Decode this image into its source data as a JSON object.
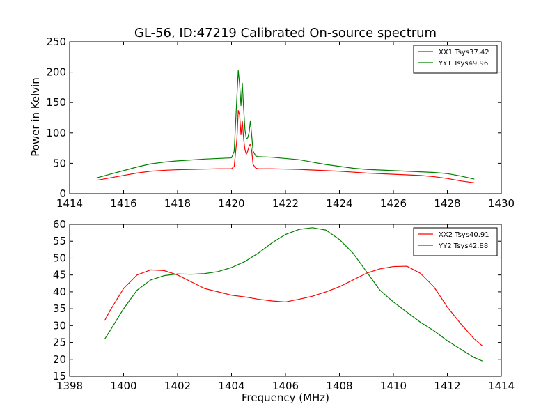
{
  "chart_data": [
    {
      "type": "line",
      "title": "GL-56, ID:47219 Calibrated On-source spectrum",
      "xlabel": "",
      "ylabel": "Power in Kelvin",
      "xlim": [
        1414,
        1430
      ],
      "ylim": [
        0,
        250
      ],
      "xticks": [
        "1414",
        "1416",
        "1418",
        "1420",
        "1422",
        "1424",
        "1426",
        "1428",
        "1430"
      ],
      "yticks": [
        "0",
        "50",
        "100",
        "150",
        "200",
        "250"
      ],
      "legend_position": "top-right",
      "grid": false,
      "series": [
        {
          "name": "XX1 Tsys37.42",
          "color": "#ff0000",
          "x": [
            1415.0,
            1415.5,
            1416.0,
            1416.5,
            1417.0,
            1417.5,
            1418.0,
            1418.5,
            1419.0,
            1419.5,
            1420.0,
            1420.1,
            1420.2,
            1420.25,
            1420.3,
            1420.35,
            1420.4,
            1420.45,
            1420.5,
            1420.55,
            1420.6,
            1420.65,
            1420.7,
            1420.75,
            1420.8,
            1420.9,
            1421.0,
            1421.5,
            1422.0,
            1422.5,
            1423.0,
            1423.5,
            1424.0,
            1424.5,
            1425.0,
            1425.5,
            1426.0,
            1426.5,
            1427.0,
            1427.5,
            1428.0,
            1428.5,
            1429.0
          ],
          "y": [
            22,
            26,
            30,
            34,
            37,
            38.5,
            39.5,
            40,
            40.5,
            41,
            41,
            45,
            90,
            137,
            130,
            97,
            120,
            90,
            72,
            65,
            70,
            78,
            82,
            70,
            48,
            42,
            41,
            41,
            40.5,
            40,
            39,
            38,
            37,
            35.5,
            34,
            33,
            32,
            31,
            30,
            28,
            25,
            21,
            18
          ]
        },
        {
          "name": "YY1 Tsys49.96",
          "color": "#008000",
          "x": [
            1415.0,
            1415.5,
            1416.0,
            1416.5,
            1417.0,
            1417.5,
            1418.0,
            1418.5,
            1419.0,
            1419.5,
            1420.0,
            1420.1,
            1420.2,
            1420.25,
            1420.3,
            1420.35,
            1420.4,
            1420.45,
            1420.5,
            1420.55,
            1420.6,
            1420.65,
            1420.7,
            1420.75,
            1420.8,
            1420.9,
            1421.0,
            1421.5,
            1422.0,
            1422.5,
            1423.0,
            1423.5,
            1424.0,
            1424.5,
            1425.0,
            1425.5,
            1426.0,
            1426.5,
            1427.0,
            1427.5,
            1428.0,
            1428.5,
            1429.0
          ],
          "y": [
            26,
            32,
            38,
            44,
            49,
            52,
            54,
            55.5,
            57,
            58,
            59,
            70,
            160,
            203,
            180,
            145,
            182,
            140,
            105,
            90,
            92,
            100,
            120,
            95,
            70,
            62,
            61,
            60,
            58,
            56,
            52,
            48,
            45,
            42,
            40,
            39,
            38,
            37,
            36,
            35,
            33,
            29,
            24
          ]
        }
      ]
    },
    {
      "type": "line",
      "title": "",
      "xlabel": "Frequency (MHz)",
      "ylabel": "",
      "xlim": [
        1398,
        1414
      ],
      "ylim": [
        15,
        60
      ],
      "xticks": [
        "1398",
        "1400",
        "1402",
        "1404",
        "1406",
        "1408",
        "1410",
        "1412",
        "1414"
      ],
      "yticks": [
        "15",
        "20",
        "25",
        "30",
        "35",
        "40",
        "45",
        "50",
        "55",
        "60"
      ],
      "legend_position": "top-right",
      "grid": false,
      "series": [
        {
          "name": "XX2 Tsys40.91",
          "color": "#ff0000",
          "x": [
            1399.3,
            1399.5,
            1400.0,
            1400.5,
            1401.0,
            1401.5,
            1402.0,
            1402.5,
            1403.0,
            1403.5,
            1404.0,
            1404.5,
            1405.0,
            1405.5,
            1406.0,
            1406.5,
            1407.0,
            1407.5,
            1408.0,
            1408.5,
            1409.0,
            1409.5,
            1410.0,
            1410.5,
            1411.0,
            1411.5,
            1412.0,
            1412.5,
            1413.0,
            1413.3
          ],
          "y": [
            31.5,
            34.5,
            41,
            45,
            46.5,
            46.3,
            45,
            43,
            41,
            40,
            39,
            38.5,
            37.8,
            37.3,
            37,
            37.8,
            38.7,
            40,
            41.5,
            43.5,
            45.5,
            46.8,
            47.5,
            47.6,
            45.5,
            41.5,
            35.5,
            30.5,
            26,
            24
          ]
        },
        {
          "name": "YY2 Tsys42.88",
          "color": "#008000",
          "x": [
            1399.3,
            1399.5,
            1400.0,
            1400.5,
            1401.0,
            1401.5,
            1402.0,
            1402.5,
            1403.0,
            1403.5,
            1404.0,
            1404.5,
            1405.0,
            1405.5,
            1406.0,
            1406.5,
            1407.0,
            1407.5,
            1408.0,
            1408.5,
            1409.0,
            1409.5,
            1410.0,
            1410.5,
            1411.0,
            1411.5,
            1412.0,
            1412.5,
            1413.0,
            1413.3
          ],
          "y": [
            26,
            28.5,
            35,
            40.5,
            43.5,
            44.8,
            45.3,
            45.2,
            45.4,
            46,
            47.2,
            49,
            51.5,
            54.5,
            57,
            58.5,
            59,
            58.3,
            55.5,
            51.5,
            46,
            40.5,
            37,
            34,
            31,
            28.5,
            25.5,
            23,
            20.5,
            19.5
          ]
        }
      ]
    }
  ]
}
